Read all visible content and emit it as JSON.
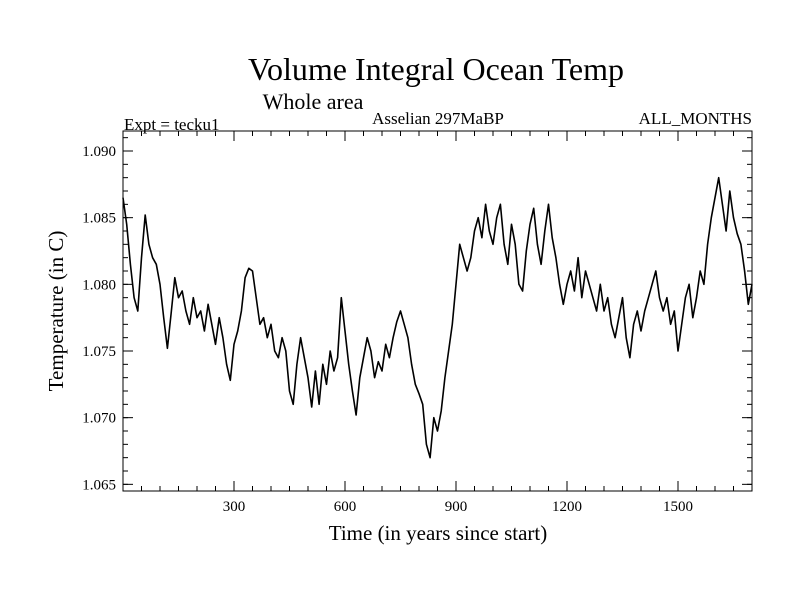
{
  "chart_data": {
    "type": "line",
    "title": "Volume Integral Ocean Temp",
    "subtitle": "Whole area",
    "info_left": "Expt = tecku1",
    "info_center": "Asselian 297MaBP",
    "info_right": "ALL_MONTHS",
    "xlabel": "Time (in years since start)",
    "ylabel": "Temperature (in C)",
    "xlim": [
      0,
      1700
    ],
    "ylim": [
      1.0645,
      1.0915
    ],
    "xticks": [
      300,
      600,
      900,
      1200,
      1500
    ],
    "xtick_labels": [
      "300",
      "600",
      "900",
      "1200",
      "1500"
    ],
    "xminor_step": 50,
    "yticks": [
      1.065,
      1.07,
      1.075,
      1.08,
      1.085,
      1.09
    ],
    "ytick_labels": [
      "1.065",
      "1.070",
      "1.075",
      "1.080",
      "1.085",
      "1.090"
    ],
    "yminor_step": 0.001,
    "grid": false,
    "series": [
      {
        "name": "Volume integral ocean temperature",
        "color": "#000000",
        "x": [
          0,
          10,
          20,
          30,
          40,
          50,
          60,
          70,
          80,
          90,
          100,
          110,
          120,
          130,
          140,
          150,
          160,
          170,
          180,
          190,
          200,
          210,
          220,
          230,
          240,
          250,
          260,
          270,
          280,
          290,
          300,
          310,
          320,
          330,
          340,
          350,
          360,
          370,
          380,
          390,
          400,
          410,
          420,
          430,
          440,
          450,
          460,
          470,
          480,
          490,
          500,
          510,
          520,
          530,
          540,
          550,
          560,
          570,
          580,
          590,
          600,
          610,
          620,
          630,
          640,
          650,
          660,
          670,
          680,
          690,
          700,
          710,
          720,
          730,
          740,
          750,
          760,
          770,
          780,
          790,
          800,
          810,
          820,
          830,
          840,
          850,
          860,
          870,
          880,
          890,
          900,
          910,
          920,
          930,
          940,
          950,
          960,
          970,
          980,
          990,
          1000,
          1010,
          1020,
          1030,
          1040,
          1050,
          1060,
          1070,
          1080,
          1090,
          1100,
          1110,
          1120,
          1130,
          1140,
          1150,
          1160,
          1170,
          1180,
          1190,
          1200,
          1210,
          1220,
          1230,
          1240,
          1250,
          1260,
          1270,
          1280,
          1290,
          1300,
          1310,
          1320,
          1330,
          1340,
          1350,
          1360,
          1370,
          1380,
          1390,
          1400,
          1410,
          1420,
          1430,
          1440,
          1450,
          1460,
          1470,
          1480,
          1490,
          1500,
          1510,
          1520,
          1530,
          1540,
          1550,
          1560,
          1570,
          1580,
          1590,
          1600,
          1610,
          1620,
          1630,
          1640,
          1650,
          1660,
          1670,
          1680,
          1690,
          1700
        ],
        "y": [
          1.0865,
          1.0845,
          1.0815,
          1.079,
          1.078,
          1.082,
          1.0852,
          1.083,
          1.082,
          1.0815,
          1.08,
          1.0775,
          1.0752,
          1.0778,
          1.0805,
          1.079,
          1.0795,
          1.078,
          1.077,
          1.079,
          1.0775,
          1.078,
          1.0765,
          1.0785,
          1.077,
          1.0755,
          1.0775,
          1.076,
          1.074,
          1.0728,
          1.0755,
          1.0765,
          1.078,
          1.0805,
          1.0812,
          1.081,
          1.079,
          1.077,
          1.0775,
          1.076,
          1.077,
          1.075,
          1.0745,
          1.076,
          1.075,
          1.072,
          1.071,
          1.074,
          1.076,
          1.0745,
          1.073,
          1.0708,
          1.0735,
          1.071,
          1.074,
          1.0725,
          1.075,
          1.0735,
          1.0745,
          1.079,
          1.0765,
          1.074,
          1.072,
          1.0702,
          1.073,
          1.0745,
          1.076,
          1.075,
          1.073,
          1.0742,
          1.0735,
          1.0755,
          1.0745,
          1.076,
          1.0772,
          1.078,
          1.077,
          1.076,
          1.074,
          1.0725,
          1.0718,
          1.071,
          1.068,
          1.067,
          1.07,
          1.069,
          1.0705,
          1.073,
          1.075,
          1.077,
          1.08,
          1.083,
          1.082,
          1.081,
          1.082,
          1.084,
          1.085,
          1.0835,
          1.086,
          1.084,
          1.083,
          1.085,
          1.086,
          1.083,
          1.0815,
          1.0845,
          1.083,
          1.08,
          1.0795,
          1.0825,
          1.0845,
          1.0857,
          1.083,
          1.0815,
          1.084,
          1.086,
          1.0835,
          1.082,
          1.08,
          1.0785,
          1.08,
          1.081,
          1.0795,
          1.082,
          1.079,
          1.081,
          1.08,
          1.079,
          1.078,
          1.08,
          1.078,
          1.079,
          1.077,
          1.076,
          1.0775,
          1.079,
          1.076,
          1.0745,
          1.077,
          1.078,
          1.0765,
          1.078,
          1.079,
          1.08,
          1.081,
          1.079,
          1.078,
          1.079,
          1.077,
          1.078,
          1.075,
          1.077,
          1.079,
          1.08,
          1.0775,
          1.079,
          1.081,
          1.08,
          1.083,
          1.085,
          1.0865,
          1.088,
          1.086,
          1.084,
          1.087,
          1.085,
          1.0838,
          1.083,
          1.081,
          1.0785,
          1.08
        ]
      }
    ]
  }
}
